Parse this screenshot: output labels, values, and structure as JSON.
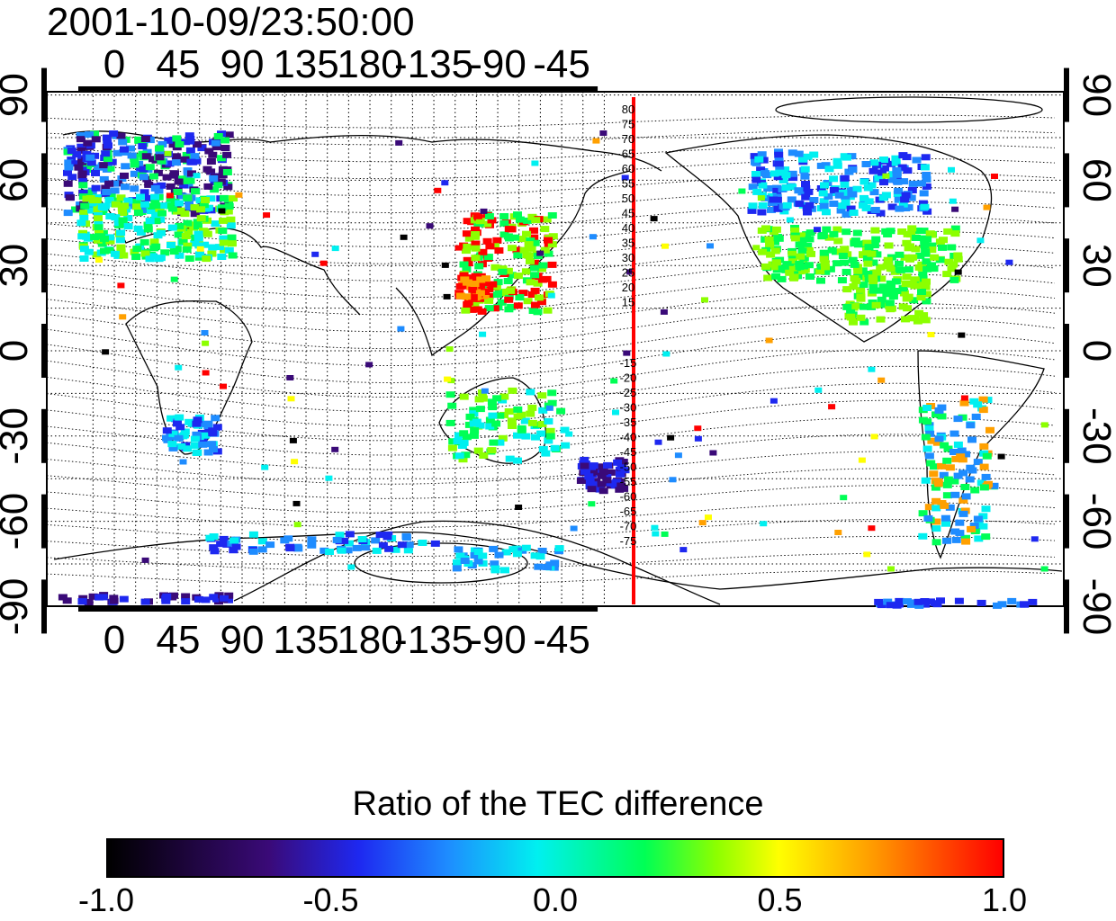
{
  "title": "2001-10-09/23:50:00",
  "map": {
    "x_ticks_top": [
      "0",
      "45",
      "90",
      "135",
      "180",
      "-135",
      "-90",
      "-45"
    ],
    "x_ticks_bottom": [
      "0",
      "45",
      "90",
      "135",
      "180",
      "-135",
      "-90",
      "-45"
    ],
    "y_ticks_left": [
      "90",
      "60",
      "30",
      "0",
      "-30",
      "-60",
      "-90"
    ],
    "y_ticks_right": [
      "90",
      "60",
      "30",
      "0",
      "-30",
      "-60",
      "-90"
    ],
    "meridian_line_longitude": 180,
    "meridian_line_color": "#ff0000",
    "meridian_labels_north": [
      "80",
      "75",
      "70",
      "65",
      "60",
      "55",
      "50",
      "45",
      "40",
      "35",
      "30",
      "25",
      "20",
      "15"
    ],
    "meridian_labels_south": [
      "-15",
      "-20",
      "-25",
      "-30",
      "-35",
      "-40",
      "-45",
      "-50",
      "-55",
      "-60",
      "-65",
      "-70",
      "-75"
    ]
  },
  "colorbar": {
    "title": "Ratio of the TEC difference",
    "ticks": [
      "-1.0",
      "-0.5",
      "0.0",
      "0.5",
      "1.0"
    ],
    "range": [
      -1.0,
      1.0
    ],
    "colors": [
      "#000000",
      "#3a0a78",
      "#1e28f0",
      "#1e8cff",
      "#00f0f0",
      "#00ff55",
      "#8cff00",
      "#ffff00",
      "#ffa000",
      "#ff0000"
    ]
  }
}
